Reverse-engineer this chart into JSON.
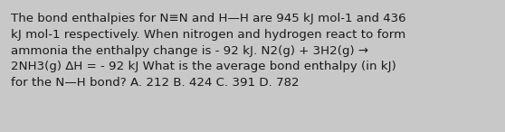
{
  "text": "The bond enthalpies for N≡N and H—H are 945 kJ mol-1 and 436\nkJ mol-1 respectively. When nitrogen and hydrogen react to form\nammonia the enthalpy change is - 92 kJ. N2(g) + 3H2(g) →\n2NH3(g) ΔH = - 92 kJ What is the average bond enthalpy (in kJ)\nfor the N—H bond? A. 212 B. 424 C. 391 D. 782",
  "background_color": "#c8c8c8",
  "text_color": "#1a1a1a",
  "font_size": 9.6,
  "fig_width": 5.58,
  "fig_height": 1.46,
  "dpi": 100
}
